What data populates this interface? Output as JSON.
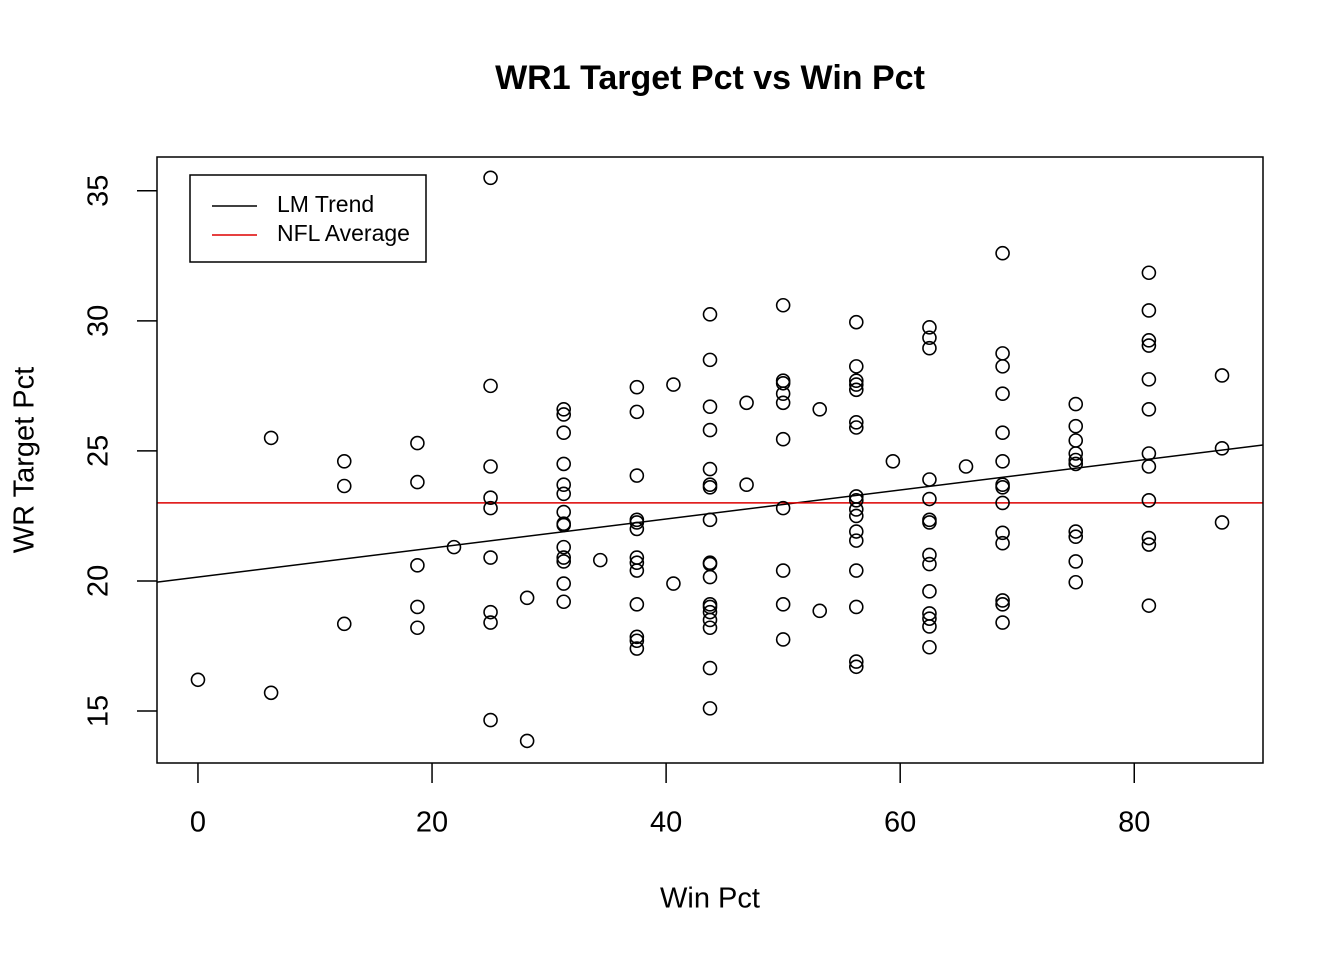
{
  "chart_data": {
    "type": "scatter",
    "title": "WR1 Target Pct vs Win Pct",
    "xlabel": "Win Pct",
    "ylabel": "WR Target Pct",
    "xlim": [
      -3.5,
      91
    ],
    "ylim": [
      13,
      36.3
    ],
    "xticks": [
      0,
      20,
      40,
      60,
      80
    ],
    "yticks": [
      15,
      20,
      25,
      30,
      35
    ],
    "legend": "top-left",
    "series": [
      {
        "color": "#000000",
        "x": [
          0,
          6.25,
          6.25,
          12.5,
          12.5,
          12.5,
          18.75,
          18.75,
          18.75,
          18.75,
          18.75,
          21.875,
          25,
          25,
          25,
          25,
          25,
          25,
          25,
          25,
          25,
          28.125,
          28.125,
          31.25,
          31.25,
          31.25,
          31.25,
          31.25,
          31.25,
          31.25,
          31.25,
          31.25,
          31.25,
          31.25,
          31.25,
          31.25,
          31.25,
          34.375,
          37.5,
          37.5,
          37.5,
          37.5,
          37.5,
          37.5,
          37.5,
          37.5,
          37.5,
          37.5,
          37.5,
          37.5,
          37.5,
          40.625,
          40.625,
          43.75,
          43.75,
          43.75,
          43.75,
          43.75,
          43.75,
          43.75,
          43.75,
          43.75,
          43.75,
          43.75,
          43.75,
          43.75,
          43.75,
          43.75,
          43.75,
          43.75,
          43.75,
          46.875,
          46.875,
          50,
          50,
          50,
          50,
          50,
          50,
          50,
          50,
          50,
          50,
          53.125,
          53.125,
          56.25,
          56.25,
          56.25,
          56.25,
          56.25,
          56.25,
          56.25,
          56.25,
          56.25,
          56.25,
          56.25,
          56.25,
          56.25,
          56.25,
          56.25,
          56.25,
          56.25,
          59.375,
          62.5,
          62.5,
          62.5,
          62.5,
          62.5,
          62.5,
          62.5,
          62.5,
          62.5,
          62.5,
          62.5,
          62.5,
          62.5,
          62.5,
          65.625,
          68.75,
          68.75,
          68.75,
          68.75,
          68.75,
          68.75,
          68.75,
          68.75,
          68.75,
          68.75,
          68.75,
          68.75,
          68.75,
          68.75,
          75,
          75,
          75,
          75,
          75,
          75,
          75,
          75,
          75,
          75,
          81.25,
          81.25,
          81.25,
          81.25,
          81.25,
          81.25,
          81.25,
          81.25,
          81.25,
          81.25,
          81.25,
          81.25,
          87.5,
          87.5,
          87.5
        ],
        "y": [
          16.2,
          25.5,
          15.7,
          24.6,
          23.65,
          18.35,
          25.3,
          23.8,
          20.6,
          19.0,
          18.2,
          21.3,
          35.5,
          27.5,
          24.4,
          23.2,
          22.8,
          20.9,
          18.8,
          18.4,
          14.65,
          19.35,
          13.85,
          26.6,
          26.4,
          25.7,
          24.5,
          23.7,
          23.35,
          22.65,
          22.2,
          22.15,
          21.3,
          20.9,
          20.75,
          19.9,
          19.2,
          20.8,
          27.45,
          26.5,
          24.05,
          22.35,
          22.25,
          22.0,
          20.9,
          20.7,
          20.4,
          19.1,
          17.85,
          17.7,
          17.4,
          27.55,
          19.9,
          30.25,
          28.5,
          26.7,
          25.8,
          24.3,
          23.7,
          23.6,
          22.35,
          20.7,
          20.65,
          20.15,
          19.1,
          19.0,
          18.8,
          18.5,
          18.2,
          16.65,
          15.1,
          26.85,
          23.7,
          30.6,
          27.7,
          27.6,
          27.2,
          26.85,
          25.45,
          22.8,
          20.4,
          19.1,
          17.75,
          26.6,
          18.85,
          29.95,
          28.25,
          27.7,
          27.55,
          27.35,
          26.1,
          25.9,
          23.25,
          23.1,
          22.75,
          22.5,
          21.9,
          21.55,
          20.4,
          19.0,
          16.9,
          16.7,
          24.6,
          29.75,
          29.35,
          28.95,
          23.9,
          23.15,
          22.35,
          22.25,
          21.0,
          20.65,
          19.6,
          18.75,
          18.55,
          18.25,
          17.45,
          24.4,
          32.6,
          28.75,
          28.25,
          27.2,
          25.7,
          24.6,
          23.7,
          23.6,
          23.0,
          21.85,
          21.45,
          19.25,
          19.1,
          18.4,
          26.8,
          25.95,
          25.4,
          24.9,
          24.65,
          24.5,
          21.9,
          21.7,
          20.75,
          19.95,
          31.85,
          30.4,
          29.25,
          29.05,
          27.75,
          26.6,
          24.9,
          24.4,
          23.1,
          21.65,
          21.4,
          19.05,
          27.9,
          25.1,
          22.25
        ]
      }
    ],
    "lines": [
      {
        "name": "LM Trend",
        "color": "#000000",
        "intercept": 20.15,
        "slope": 0.0558
      },
      {
        "name": "NFL Average",
        "color": "#dd0000",
        "intercept": 23.0,
        "slope": 0
      }
    ]
  }
}
